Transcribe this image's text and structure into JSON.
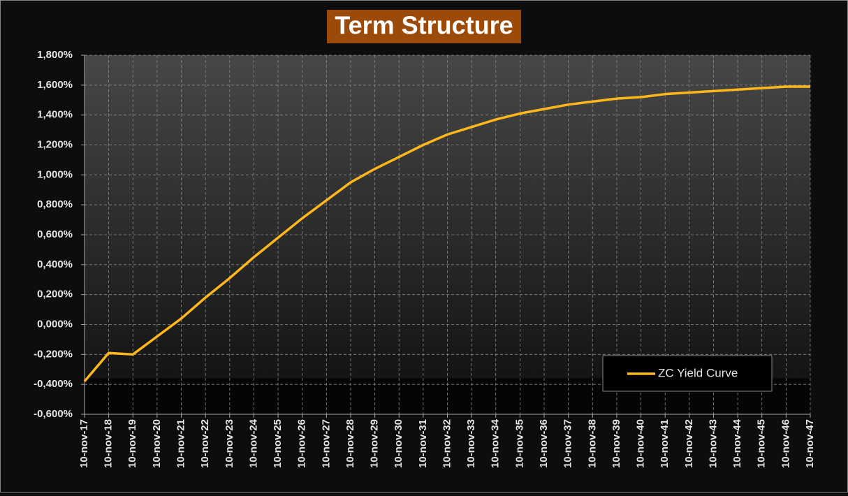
{
  "chart_data": {
    "type": "line",
    "title": "Term Structure",
    "categories": [
      "10-nov-17",
      "10-nov-18",
      "10-nov-19",
      "10-nov-20",
      "10-nov-21",
      "10-nov-22",
      "10-nov-23",
      "10-nov-24",
      "10-nov-25",
      "10-nov-26",
      "10-nov-27",
      "10-nov-28",
      "10-nov-29",
      "10-nov-30",
      "10-nov-31",
      "10-nov-32",
      "10-nov-33",
      "10-nov-34",
      "10-nov-35",
      "10-nov-36",
      "10-nov-37",
      "10-nov-38",
      "10-nov-39",
      "10-nov-40",
      "10-nov-41",
      "10-nov-42",
      "10-nov-43",
      "10-nov-44",
      "10-nov-45",
      "10-nov-46",
      "10-nov-47"
    ],
    "series": [
      {
        "name": "ZC Yield Curve",
        "color": "#ffb81c",
        "values": [
          -0.38,
          -0.19,
          -0.2,
          -0.08,
          0.04,
          0.18,
          0.31,
          0.45,
          0.58,
          0.71,
          0.83,
          0.95,
          1.04,
          1.12,
          1.2,
          1.27,
          1.32,
          1.37,
          1.41,
          1.44,
          1.47,
          1.49,
          1.51,
          1.52,
          1.54,
          1.55,
          1.56,
          1.57,
          1.58,
          1.59,
          1.59
        ]
      }
    ],
    "ylim": [
      -0.6,
      1.8
    ],
    "yticks": [
      {
        "value": -0.6,
        "label": "-0,600%"
      },
      {
        "value": -0.4,
        "label": "-0,400%"
      },
      {
        "value": -0.2,
        "label": "-0,200%"
      },
      {
        "value": 0,
        "label": "0,000%"
      },
      {
        "value": 0.2,
        "label": "0,200%"
      },
      {
        "value": 0.4,
        "label": "0,400%"
      },
      {
        "value": 0.6,
        "label": "0,600%"
      },
      {
        "value": 0.8,
        "label": "0,800%"
      },
      {
        "value": 1.0,
        "label": "1,000%"
      },
      {
        "value": 1.2,
        "label": "1,200%"
      },
      {
        "value": 1.4,
        "label": "1,400%"
      },
      {
        "value": 1.6,
        "label": "1,600%"
      },
      {
        "value": 1.8,
        "label": "1,800%"
      }
    ],
    "grid": true,
    "legend": "lower right"
  }
}
